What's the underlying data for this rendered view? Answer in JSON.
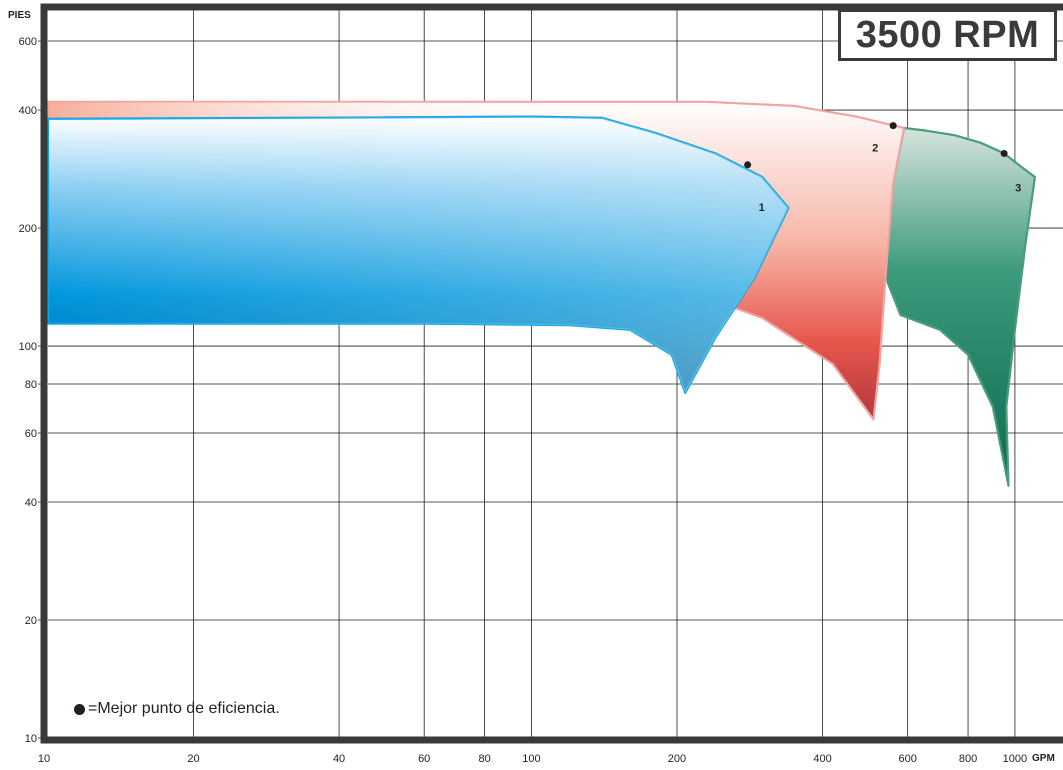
{
  "rpm_label": "3500 RPM",
  "legend_text": "=Mejor punto de eficiencia.",
  "colors": {
    "region_1": "#0096dc",
    "region_2": "#e8574d",
    "region_3": "#23876a",
    "grid": "#231f20",
    "frame": "#3a3a3a"
  },
  "chart_data": {
    "type": "area",
    "title": "3500 RPM",
    "xlabel": "GPM",
    "ylabel": "PIES",
    "x_scale": "log",
    "y_scale": "log",
    "xlim": [
      10,
      1300
    ],
    "ylim": [
      10,
      720
    ],
    "x_ticks": [
      10,
      20,
      40,
      60,
      80,
      100,
      200,
      400,
      600,
      800,
      1000
    ],
    "y_ticks": [
      10,
      20,
      40,
      60,
      80,
      100,
      200,
      400,
      600
    ],
    "grid": true,
    "series": [
      {
        "name": "1",
        "best_efficiency_point": {
          "x": 280,
          "y": 290
        },
        "polygon": [
          [
            10,
            380
          ],
          [
            50,
            383
          ],
          [
            100,
            385
          ],
          [
            140,
            382
          ],
          [
            180,
            350
          ],
          [
            240,
            310
          ],
          [
            300,
            270
          ],
          [
            340,
            225
          ],
          [
            290,
            150
          ],
          [
            240,
            105
          ],
          [
            208,
            76
          ],
          [
            195,
            95
          ],
          [
            160,
            110
          ],
          [
            120,
            113
          ],
          [
            60,
            114
          ],
          [
            10,
            114
          ]
        ]
      },
      {
        "name": "2",
        "best_efficiency_point": {
          "x": 560,
          "y": 365
        },
        "polygon": [
          [
            10,
            420
          ],
          [
            100,
            420
          ],
          [
            230,
            420
          ],
          [
            350,
            410
          ],
          [
            470,
            385
          ],
          [
            590,
            360
          ],
          [
            560,
            260
          ],
          [
            540,
            150
          ],
          [
            525,
            90
          ],
          [
            510,
            65
          ],
          [
            420,
            90
          ],
          [
            300,
            118
          ],
          [
            250,
            128
          ],
          [
            285,
            175
          ],
          [
            340,
            225
          ],
          [
            300,
            270
          ],
          [
            240,
            310
          ],
          [
            180,
            350
          ],
          [
            140,
            382
          ],
          [
            100,
            385
          ],
          [
            50,
            383
          ],
          [
            10,
            380
          ]
        ]
      },
      {
        "name": "3",
        "best_efficiency_point": {
          "x": 950,
          "y": 310
        },
        "polygon": [
          [
            590,
            360
          ],
          [
            650,
            355
          ],
          [
            750,
            345
          ],
          [
            850,
            330
          ],
          [
            950,
            310
          ],
          [
            1000,
            295
          ],
          [
            1100,
            270
          ],
          [
            1050,
            180
          ],
          [
            1000,
            110
          ],
          [
            960,
            70
          ],
          [
            970,
            44
          ],
          [
            900,
            70
          ],
          [
            800,
            95
          ],
          [
            700,
            110
          ],
          [
            580,
            120
          ],
          [
            540,
            150
          ],
          [
            560,
            260
          ]
        ]
      }
    ]
  }
}
